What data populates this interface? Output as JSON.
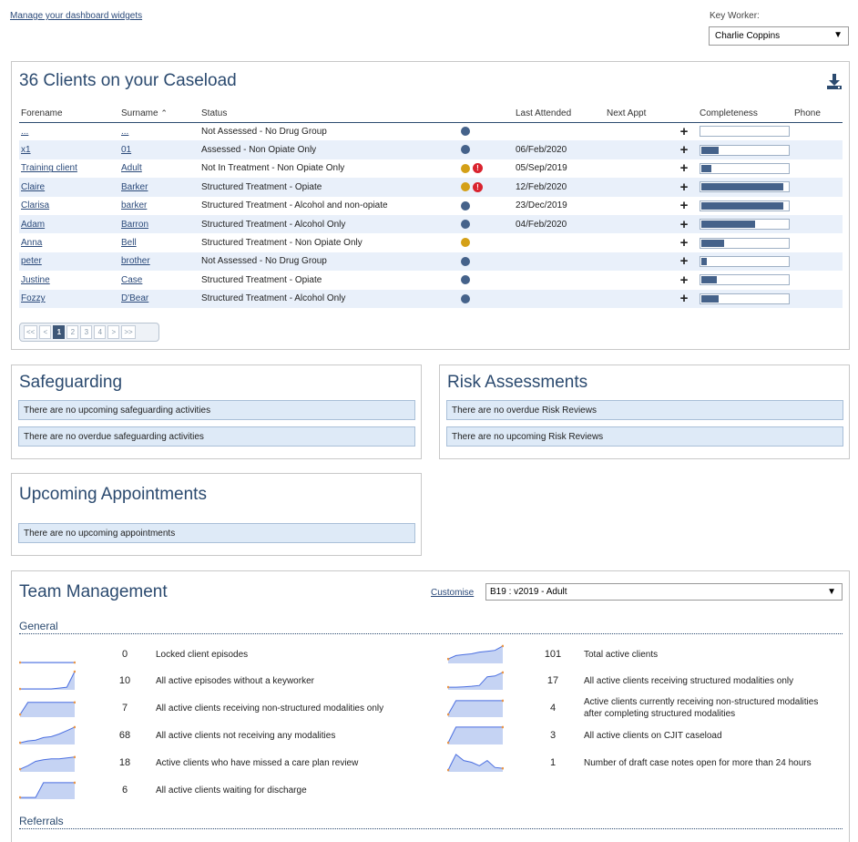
{
  "top": {
    "manage_link": "Manage your dashboard widgets",
    "key_worker_label": "Key Worker:",
    "key_worker_value": "Charlie Coppins"
  },
  "caseload": {
    "title": "36 Clients on your Caseload",
    "download_icon": "download-icon",
    "columns": [
      "Forename",
      "Surname",
      "Status",
      "Last Attended",
      "Next Appt",
      "Completeness",
      "Phone"
    ],
    "sort_indicator": "^",
    "rows": [
      {
        "forename": "...",
        "surname": "...",
        "status": "Not Assessed - No Drug Group",
        "dot": "#45628a",
        "warn": false,
        "last": "",
        "next": "",
        "completeness": 0,
        "phone": ""
      },
      {
        "forename": "x1",
        "surname": "01",
        "status": "Assessed - Non Opiate Only",
        "dot": "#45628a",
        "warn": false,
        "last": "06/Feb/2020",
        "next": "",
        "completeness": 0.2,
        "phone": ""
      },
      {
        "forename": "Training client",
        "surname": "Adult",
        "status": "Not In Treatment - Non Opiate Only",
        "dot": "#d4a017",
        "warn": true,
        "last": "05/Sep/2019",
        "next": "",
        "completeness": 0.12,
        "phone": ""
      },
      {
        "forename": "Claire",
        "surname": "Barker",
        "status": "Structured Treatment - Opiate",
        "dot": "#d4a017",
        "warn": true,
        "last": "12/Feb/2020",
        "next": "",
        "completeness": 0.95,
        "phone": ""
      },
      {
        "forename": "Clarisa",
        "surname": "barker",
        "status": "Structured Treatment - Alcohol and non-opiate",
        "dot": "#45628a",
        "warn": false,
        "last": "23/Dec/2019",
        "next": "",
        "completeness": 0.95,
        "phone": ""
      },
      {
        "forename": "Adam",
        "surname": "Barron",
        "status": "Structured Treatment - Alcohol Only",
        "dot": "#45628a",
        "warn": false,
        "last": "04/Feb/2020",
        "next": "",
        "completeness": 0.62,
        "phone": ""
      },
      {
        "forename": "Anna",
        "surname": "Bell",
        "status": "Structured Treatment - Non Opiate Only",
        "dot": "#d4a017",
        "warn": false,
        "last": "",
        "next": "",
        "completeness": 0.26,
        "phone": ""
      },
      {
        "forename": "peter",
        "surname": "brother",
        "status": "Not Assessed - No Drug Group",
        "dot": "#45628a",
        "warn": false,
        "last": "",
        "next": "",
        "completeness": 0.06,
        "phone": ""
      },
      {
        "forename": "Justine",
        "surname": "Case",
        "status": "Structured Treatment - Opiate",
        "dot": "#45628a",
        "warn": false,
        "last": "",
        "next": "",
        "completeness": 0.18,
        "phone": ""
      },
      {
        "forename": "Fozzy",
        "surname": "D'Bear",
        "status": "Structured Treatment - Alcohol Only",
        "dot": "#45628a",
        "warn": false,
        "last": "",
        "next": "",
        "completeness": 0.2,
        "phone": ""
      }
    ],
    "pager": [
      "<<",
      "<",
      "1",
      "2",
      "3",
      "4",
      ">",
      ">>"
    ],
    "pager_active": "1"
  },
  "safeguarding": {
    "title": "Safeguarding",
    "messages": [
      "There are no upcoming safeguarding activities",
      "There are no overdue safeguarding activities"
    ]
  },
  "risk": {
    "title": "Risk Assessments",
    "messages": [
      "There are no overdue Risk Reviews",
      "There are no upcoming Risk Reviews"
    ]
  },
  "appointments": {
    "title": "Upcoming Appointments",
    "messages": [
      "There are no upcoming appointments"
    ]
  },
  "team": {
    "title": "Team Management",
    "customise": "Customise",
    "select_value": "B19 : v2019 - Adult",
    "general_heading": "General",
    "referrals_heading": "Referrals",
    "left_metrics": [
      {
        "value": "0",
        "label": "Locked client episodes",
        "trend": [
          0,
          0,
          0,
          0,
          0,
          0,
          0,
          0
        ]
      },
      {
        "value": "10",
        "label": "All active episodes without a keyworker",
        "trend": [
          0,
          0,
          0,
          0,
          0,
          0.05,
          0.1,
          1
        ]
      },
      {
        "value": "7",
        "label": "All active clients receiving non-structured modalities only",
        "trend": [
          0.1,
          0.8,
          0.8,
          0.8,
          0.8,
          0.8,
          0.8,
          0.8
        ]
      },
      {
        "value": "68",
        "label": "All active clients not receiving any modalities",
        "trend": [
          0.05,
          0.15,
          0.2,
          0.35,
          0.4,
          0.55,
          0.75,
          0.95
        ]
      },
      {
        "value": "18",
        "label": "Active clients who have missed a care plan review",
        "trend": [
          0.1,
          0.3,
          0.55,
          0.65,
          0.7,
          0.7,
          0.75,
          0.8
        ]
      },
      {
        "value": "6",
        "label": "All active clients waiting for discharge",
        "trend": [
          0.05,
          0.05,
          0.05,
          0.9,
          0.9,
          0.9,
          0.9,
          0.9
        ]
      }
    ],
    "right_metrics": [
      {
        "value": "101",
        "label": "Total active clients",
        "trend": [
          0.2,
          0.4,
          0.45,
          0.5,
          0.6,
          0.65,
          0.7,
          0.95
        ]
      },
      {
        "value": "17",
        "label": "All active clients receiving structured modalities only",
        "trend": [
          0.1,
          0.1,
          0.12,
          0.15,
          0.2,
          0.7,
          0.75,
          0.95
        ]
      },
      {
        "value": "4",
        "label": "Active clients currently receiving non-structured modalities after completing structured modalities",
        "trend": [
          0.1,
          0.9,
          0.9,
          0.9,
          0.9,
          0.9,
          0.9,
          0.9
        ]
      },
      {
        "value": "3",
        "label": "All active clients on CJIT caseload",
        "trend": [
          0.05,
          0.95,
          0.95,
          0.95,
          0.95,
          0.95,
          0.95,
          0.95
        ]
      },
      {
        "value": "1",
        "label": "Number of draft case notes open for more than 24 hours",
        "trend": [
          0.05,
          0.95,
          0.6,
          0.5,
          0.3,
          0.6,
          0.2,
          0.15
        ]
      }
    ],
    "colors": {
      "line": "#4a6ee0",
      "fill": "#c5d3f3",
      "end_dot": "#e8964a"
    }
  }
}
